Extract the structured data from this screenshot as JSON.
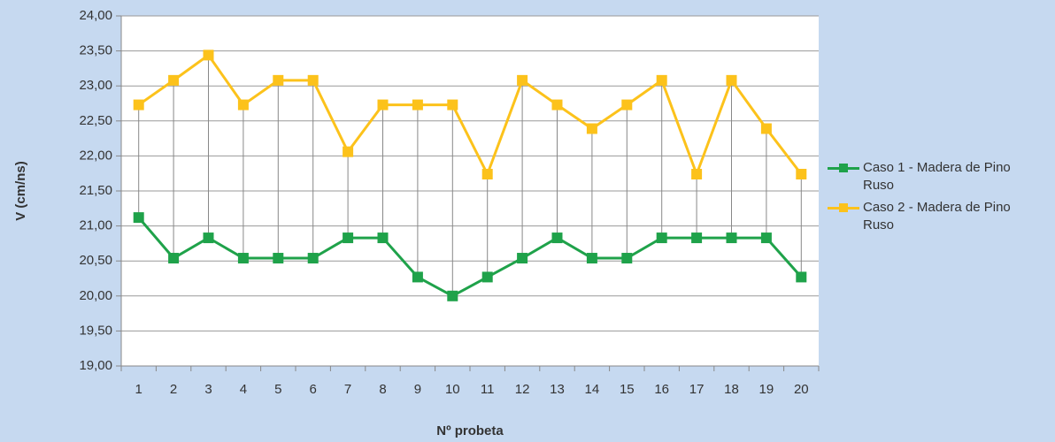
{
  "chart_data": {
    "type": "line",
    "x_label": "Nº probeta",
    "y_label": "V (cm/ns)",
    "categories": [
      "1",
      "2",
      "3",
      "4",
      "5",
      "6",
      "7",
      "8",
      "9",
      "10",
      "11",
      "12",
      "13",
      "14",
      "15",
      "16",
      "17",
      "18",
      "19",
      "20"
    ],
    "series": [
      {
        "name": "Caso 1 - Madera de Pino Ruso",
        "color": "#1fa24a",
        "values": [
          21.12,
          20.54,
          20.83,
          20.54,
          20.54,
          20.54,
          20.83,
          20.83,
          20.27,
          20.0,
          20.27,
          20.54,
          20.83,
          20.54,
          20.54,
          20.83,
          20.83,
          20.83,
          20.83,
          20.27
        ]
      },
      {
        "name": "Caso 2 - Madera de Pino Ruso",
        "color": "#fcc21b",
        "values": [
          22.73,
          23.08,
          23.44,
          22.73,
          23.08,
          23.08,
          22.06,
          22.73,
          22.73,
          22.73,
          21.74,
          23.08,
          22.73,
          22.39,
          22.73,
          23.08,
          21.74,
          23.08,
          22.39,
          21.74
        ]
      }
    ],
    "ylim": [
      19,
      24
    ],
    "yticks": [
      {
        "value": 19,
        "label": "19,00"
      },
      {
        "value": 19.5,
        "label": "19,50"
      },
      {
        "value": 20,
        "label": "20,00"
      },
      {
        "value": 20.5,
        "label": "20,50"
      },
      {
        "value": 21,
        "label": "21,00"
      },
      {
        "value": 21.5,
        "label": "21,50"
      },
      {
        "value": 22,
        "label": "22,00"
      },
      {
        "value": 22.5,
        "label": "22,50"
      },
      {
        "value": 23,
        "label": "23,00"
      },
      {
        "value": 23.5,
        "label": "23,50"
      },
      {
        "value": 24,
        "label": "24,00"
      }
    ],
    "grid": true,
    "drop_lines": true,
    "legend": "right"
  }
}
